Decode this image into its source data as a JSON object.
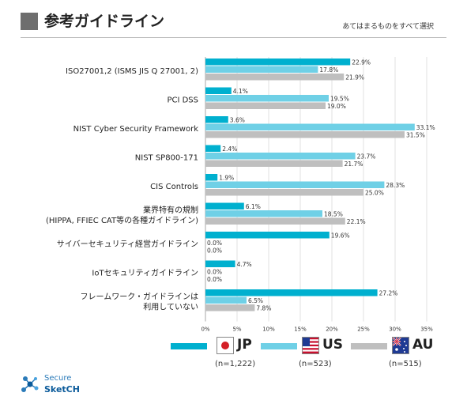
{
  "header": {
    "title": "参考ガイドライン",
    "subtitle": "あてはまるものをすべて選択"
  },
  "legend": {
    "items": [
      {
        "label": "JP",
        "n": "(n=1,222)",
        "flag": "jp-flag-icon"
      },
      {
        "label": "US",
        "n": "(n=523)",
        "flag": "us-flag-icon"
      },
      {
        "label": "AU",
        "n": "(n=515)",
        "flag": "au-flag-icon"
      }
    ]
  },
  "brand": {
    "line1": "Secure",
    "line2": "SketCH"
  },
  "colors": {
    "JP": "#00b0cf",
    "US": "#6fd0e6",
    "AU": "#bfbfbf",
    "grid": "#d9d9d9",
    "title_square": "#6e6e6e"
  },
  "chart_data": {
    "type": "bar",
    "orientation": "horizontal",
    "categories": [
      [
        "ISO27001,2 (ISMS JIS Q 27001, 2)"
      ],
      [
        "PCI DSS"
      ],
      [
        "NIST Cyber Security Framework"
      ],
      [
        "NIST SP800-171"
      ],
      [
        "CIS Controls"
      ],
      [
        "業界特有の規制",
        "(HIPPA, FFIEC CAT等の各種ガイドライン)"
      ],
      [
        "サイバーセキュリティ経営ガイドライン"
      ],
      [
        "IoTセキュリティガイドライン"
      ],
      [
        "フレームワーク・ガイドラインは",
        "利用していない"
      ]
    ],
    "series": [
      {
        "name": "JP",
        "values": [
          22.9,
          4.1,
          3.6,
          2.4,
          1.9,
          6.1,
          19.6,
          4.7,
          27.2
        ]
      },
      {
        "name": "US",
        "values": [
          17.8,
          19.5,
          33.1,
          23.7,
          28.3,
          18.5,
          0.0,
          0.0,
          6.5
        ]
      },
      {
        "name": "AU",
        "values": [
          21.9,
          19.0,
          31.5,
          21.7,
          25.0,
          22.1,
          0.0,
          0.0,
          7.8
        ]
      }
    ],
    "xlim": [
      0,
      35
    ],
    "xticks": [
      "0%",
      "5%",
      "10%",
      "15%",
      "20%",
      "25%",
      "30%",
      "35%"
    ],
    "grid": true,
    "legend_position": "bottom"
  }
}
